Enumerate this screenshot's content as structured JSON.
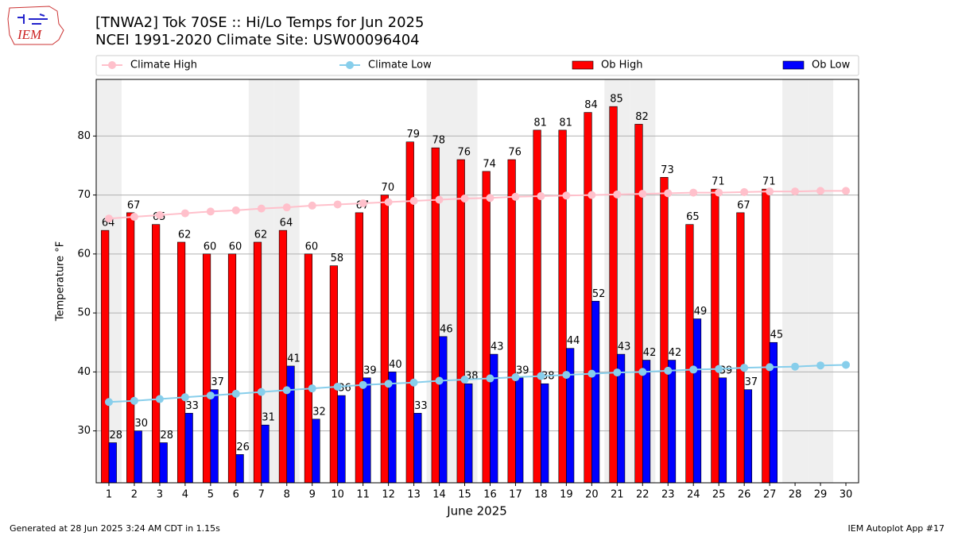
{
  "chart_data": {
    "type": "bar",
    "title": "[TNWA2] Tok 70SE :: Hi/Lo Temps for Jun 2025",
    "subtitle": "NCEI 1991-2020 Climate Site: USW00096404",
    "logo_text": "IEM",
    "x_label": "June 2025",
    "y_label": "Temperature °F",
    "footer_left": "Generated at 28 Jun 2025 3:24 AM CDT in 1.15s",
    "footer_right": "IEM Autoplot App #17",
    "x": [
      1,
      2,
      3,
      4,
      5,
      6,
      7,
      8,
      9,
      10,
      11,
      12,
      13,
      14,
      15,
      16,
      17,
      18,
      19,
      20,
      21,
      22,
      23,
      24,
      25,
      26,
      27,
      28,
      29,
      30
    ],
    "xlim": [
      0.5,
      30.5
    ],
    "xticks": [
      1,
      2,
      3,
      4,
      5,
      6,
      7,
      8,
      9,
      10,
      11,
      12,
      13,
      14,
      15,
      16,
      17,
      18,
      19,
      20,
      21,
      22,
      23,
      24,
      25,
      26,
      27,
      28,
      29,
      30
    ],
    "ylim": [
      21.2,
      89.6
    ],
    "yticks": [
      30,
      40,
      50,
      60,
      70,
      80
    ],
    "grid": true,
    "shaded_days": [
      1,
      7,
      8,
      14,
      15,
      21,
      22,
      28,
      29
    ],
    "shade_color": "#efefef",
    "series": [
      {
        "name": "Climate High",
        "type": "line",
        "color": "pink",
        "values": [
          66.0,
          66.3,
          66.6,
          66.9,
          67.2,
          67.4,
          67.7,
          67.9,
          68.2,
          68.4,
          68.6,
          68.8,
          69.0,
          69.2,
          69.4,
          69.5,
          69.7,
          69.8,
          69.9,
          70.0,
          70.1,
          70.2,
          70.3,
          70.4,
          70.4,
          70.5,
          70.6,
          70.6,
          70.7,
          70.7
        ]
      },
      {
        "name": "Climate Low",
        "type": "line",
        "color": "skyblue",
        "values": [
          34.9,
          35.1,
          35.4,
          35.7,
          36.0,
          36.3,
          36.6,
          36.9,
          37.2,
          37.5,
          37.8,
          38.0,
          38.2,
          38.5,
          38.7,
          38.9,
          39.1,
          39.3,
          39.5,
          39.7,
          39.9,
          40.0,
          40.2,
          40.4,
          40.5,
          40.7,
          40.8,
          40.9,
          41.1,
          41.2
        ]
      },
      {
        "name": "Ob High",
        "type": "bar",
        "color": "red",
        "values": [
          64,
          67,
          65,
          62,
          60,
          60,
          62,
          64,
          60,
          58,
          67,
          70,
          79,
          78,
          76,
          74,
          76,
          81,
          81,
          84,
          85,
          82,
          73,
          65,
          71,
          67,
          71,
          null,
          null,
          null
        ]
      },
      {
        "name": "Ob Low",
        "type": "bar",
        "color": "blue",
        "values": [
          28,
          30,
          28,
          33,
          37,
          26,
          31,
          41,
          32,
          36,
          39,
          40,
          33,
          46,
          38,
          43,
          39,
          38,
          44,
          52,
          43,
          42,
          42,
          49,
          39,
          37,
          45,
          null,
          null,
          null
        ]
      }
    ]
  }
}
